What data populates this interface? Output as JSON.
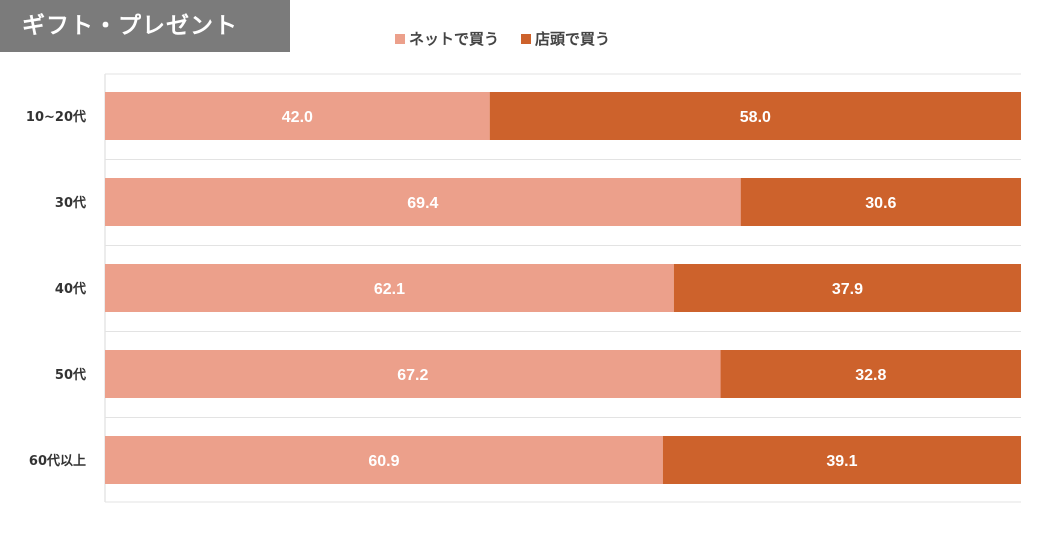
{
  "title": "ギフト・プレゼント",
  "legend": [
    {
      "label": "ネットで買う",
      "color": "#eca08b"
    },
    {
      "label": "店頭で買う",
      "color": "#cd622c"
    }
  ],
  "chart_data": {
    "type": "bar",
    "orientation": "horizontal",
    "stacked": true,
    "categories": [
      "10~20代",
      "30代",
      "40代",
      "50代",
      "60代以上"
    ],
    "series": [
      {
        "name": "ネットで買う",
        "values": [
          42.0,
          69.4,
          62.1,
          67.2,
          60.9
        ],
        "color": "#eca08b"
      },
      {
        "name": "店頭で買う",
        "values": [
          58.0,
          30.6,
          37.9,
          32.8,
          39.1
        ],
        "color": "#cd622c"
      }
    ],
    "xlim": [
      0,
      100
    ],
    "grid": true,
    "legend_position": "top"
  }
}
